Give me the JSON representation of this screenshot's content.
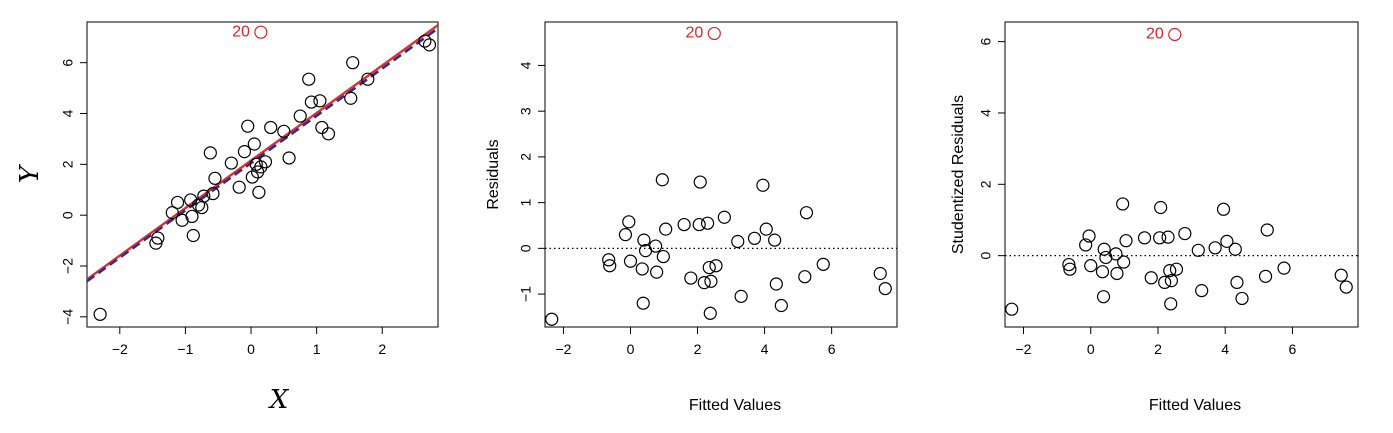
{
  "colors": {
    "points": "#000000",
    "highlight": "#d62728",
    "fit_line": "#e03030",
    "fit_line_dashed": "#2c2f8c"
  },
  "chart_data": [
    {
      "type": "scatter",
      "xlabel": "X",
      "ylabel": "Y",
      "xlim": [
        -2.5,
        2.85
      ],
      "ylim": [
        -4.4,
        7.6
      ],
      "xticks": [
        -2,
        -1,
        0,
        1,
        2
      ],
      "yticks": [
        -4,
        -2,
        0,
        2,
        4,
        6
      ],
      "grid": false,
      "series": [
        {
          "points": [
            [
              -2.3,
              -3.9
            ],
            [
              -1.45,
              -1.1
            ],
            [
              -1.42,
              -0.9
            ],
            [
              -1.2,
              0.1
            ],
            [
              -1.12,
              0.5
            ],
            [
              -1.05,
              -0.2
            ],
            [
              -0.92,
              0.6
            ],
            [
              -0.9,
              -0.05
            ],
            [
              -0.88,
              -0.8
            ],
            [
              -0.8,
              0.4
            ],
            [
              -0.75,
              0.3
            ],
            [
              -0.72,
              0.75
            ],
            [
              -0.62,
              2.45
            ],
            [
              -0.58,
              0.85
            ],
            [
              -0.55,
              1.45
            ],
            [
              -0.3,
              2.05
            ],
            [
              -0.18,
              1.1
            ],
            [
              -0.1,
              2.5
            ],
            [
              -0.05,
              3.5
            ],
            [
              0.02,
              1.5
            ],
            [
              0.05,
              2.8
            ],
            [
              0.08,
              2.0
            ],
            [
              0.1,
              1.7
            ],
            [
              0.12,
              0.9
            ],
            [
              0.15,
              1.9
            ],
            [
              0.22,
              2.1
            ],
            [
              0.3,
              3.45
            ],
            [
              0.5,
              3.3
            ],
            [
              0.58,
              2.25
            ],
            [
              0.75,
              3.9
            ],
            [
              0.88,
              5.35
            ],
            [
              0.92,
              4.45
            ],
            [
              1.05,
              4.5
            ],
            [
              1.08,
              3.45
            ],
            [
              1.18,
              3.2
            ],
            [
              1.52,
              4.6
            ],
            [
              1.55,
              6.0
            ],
            [
              1.78,
              5.35
            ],
            [
              2.65,
              6.85
            ],
            [
              2.72,
              6.7
            ]
          ]
        },
        {
          "name": "20",
          "points": [
            [
              0.15,
              7.2
            ]
          ]
        }
      ],
      "fit_lines": [
        {
          "style": "solid",
          "intercept": 2.15,
          "slope": 1.87
        },
        {
          "style": "dashed",
          "intercept": 2.05,
          "slope": 1.86
        }
      ]
    },
    {
      "type": "scatter",
      "xlabel": "Fitted Values",
      "ylabel": "Residuals",
      "xlim": [
        -2.55,
        7.95
      ],
      "ylim": [
        -1.72,
        4.95
      ],
      "xticks": [
        -2,
        0,
        2,
        4,
        6
      ],
      "yticks": [
        -1,
        0,
        1,
        2,
        3,
        4
      ],
      "grid": false,
      "reference_line": {
        "y": 0,
        "style": "dotted"
      },
      "series": [
        {
          "points": [
            [
              -2.35,
              -1.55
            ],
            [
              -0.65,
              -0.25
            ],
            [
              -0.62,
              -0.38
            ],
            [
              -0.15,
              0.3
            ],
            [
              -0.05,
              0.58
            ],
            [
              0.0,
              -0.28
            ],
            [
              0.35,
              -0.45
            ],
            [
              0.38,
              -1.2
            ],
            [
              0.4,
              0.18
            ],
            [
              0.45,
              -0.05
            ],
            [
              0.75,
              0.05
            ],
            [
              0.78,
              -0.52
            ],
            [
              0.95,
              1.5
            ],
            [
              0.98,
              -0.18
            ],
            [
              1.05,
              0.42
            ],
            [
              1.6,
              0.52
            ],
            [
              1.8,
              -0.65
            ],
            [
              2.05,
              0.52
            ],
            [
              2.08,
              1.45
            ],
            [
              2.2,
              -0.75
            ],
            [
              2.3,
              0.55
            ],
            [
              2.35,
              -0.42
            ],
            [
              2.38,
              -1.42
            ],
            [
              2.4,
              -0.72
            ],
            [
              2.55,
              -0.38
            ],
            [
              2.8,
              0.68
            ],
            [
              3.2,
              0.15
            ],
            [
              3.3,
              -1.05
            ],
            [
              3.7,
              0.22
            ],
            [
              3.95,
              1.38
            ],
            [
              4.05,
              0.42
            ],
            [
              4.3,
              0.18
            ],
            [
              4.35,
              -0.78
            ],
            [
              4.5,
              -1.25
            ],
            [
              5.2,
              -0.62
            ],
            [
              5.25,
              0.78
            ],
            [
              5.75,
              -0.35
            ],
            [
              7.45,
              -0.55
            ],
            [
              7.6,
              -0.88
            ]
          ]
        },
        {
          "name": "20",
          "points": [
            [
              2.5,
              4.7
            ]
          ]
        }
      ]
    },
    {
      "type": "scatter",
      "xlabel": "Fitted Values",
      "ylabel": "Studentized Residuals",
      "xlim": [
        -2.55,
        7.95
      ],
      "ylim": [
        -2.0,
        6.55
      ],
      "xticks": [
        -2,
        0,
        2,
        4,
        6
      ],
      "yticks": [
        0,
        2,
        4,
        6
      ],
      "grid": false,
      "reference_line": {
        "y": 0,
        "style": "dotted"
      },
      "series": [
        {
          "points": [
            [
              -2.35,
              -1.5
            ],
            [
              -0.65,
              -0.25
            ],
            [
              -0.62,
              -0.38
            ],
            [
              -0.15,
              0.3
            ],
            [
              -0.05,
              0.55
            ],
            [
              0.0,
              -0.28
            ],
            [
              0.35,
              -0.45
            ],
            [
              0.38,
              -1.15
            ],
            [
              0.4,
              0.18
            ],
            [
              0.45,
              -0.05
            ],
            [
              0.75,
              0.05
            ],
            [
              0.78,
              -0.5
            ],
            [
              0.95,
              1.45
            ],
            [
              0.98,
              -0.18
            ],
            [
              1.05,
              0.42
            ],
            [
              1.6,
              0.5
            ],
            [
              1.8,
              -0.62
            ],
            [
              2.05,
              0.5
            ],
            [
              2.08,
              1.35
            ],
            [
              2.2,
              -0.75
            ],
            [
              2.3,
              0.52
            ],
            [
              2.35,
              -0.42
            ],
            [
              2.38,
              -1.35
            ],
            [
              2.4,
              -0.7
            ],
            [
              2.55,
              -0.38
            ],
            [
              2.8,
              0.62
            ],
            [
              3.2,
              0.15
            ],
            [
              3.3,
              -0.98
            ],
            [
              3.7,
              0.22
            ],
            [
              3.95,
              1.3
            ],
            [
              4.05,
              0.4
            ],
            [
              4.3,
              0.18
            ],
            [
              4.35,
              -0.75
            ],
            [
              4.5,
              -1.2
            ],
            [
              5.2,
              -0.58
            ],
            [
              5.25,
              0.72
            ],
            [
              5.75,
              -0.35
            ],
            [
              7.45,
              -0.55
            ],
            [
              7.6,
              -0.88
            ]
          ]
        },
        {
          "name": "20",
          "points": [
            [
              2.5,
              6.2
            ]
          ]
        }
      ]
    }
  ]
}
